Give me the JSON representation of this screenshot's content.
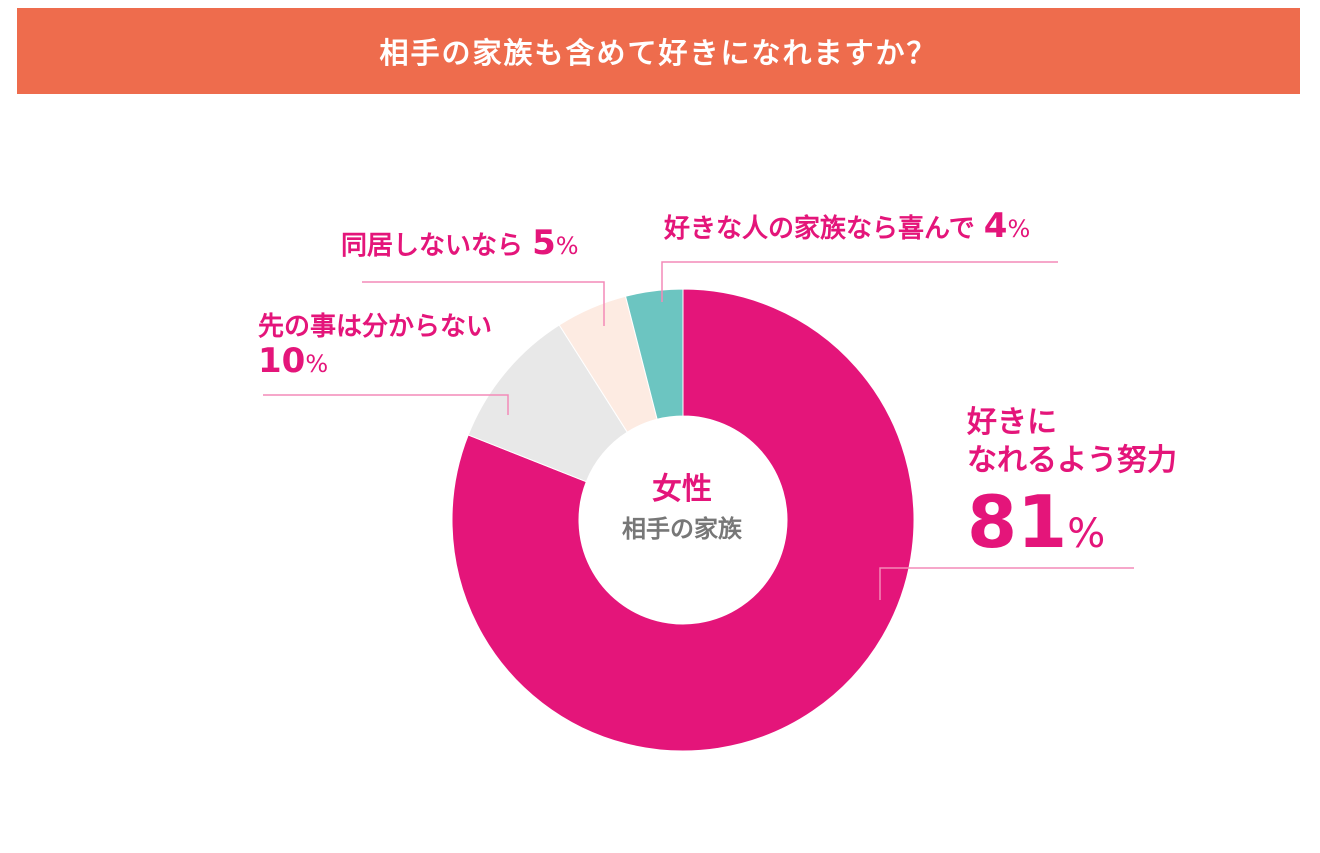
{
  "header": {
    "title": "相手の家族も含めて好きになれますか？",
    "color": "#ee6c4d"
  },
  "chart_data": {
    "type": "pie",
    "donut": true,
    "center_title": "女性",
    "center_subtitle": "相手の家族",
    "slices": [
      {
        "label": "好きになれるよう努力",
        "label_lines": [
          "好きに",
          "なれるよう努力"
        ],
        "value": 81,
        "value_text": "81",
        "color": "#e4157a"
      },
      {
        "label": "先の事は分からない",
        "label_lines": [
          "先の事は分からない"
        ],
        "value": 10,
        "value_text": "10",
        "color": "#e8e8e8"
      },
      {
        "label": "同居しないなら",
        "label_lines": [
          "同居しないなら"
        ],
        "value": 5,
        "value_text": "5",
        "color": "#fdebe2"
      },
      {
        "label": "好きな人の家族なら喜んで",
        "label_lines": [
          "好きな人の家族なら喜んで"
        ],
        "value": 4,
        "value_text": "4",
        "color": "#6cc5c1"
      }
    ],
    "percent_sign": "%",
    "leader_color": "#f38ab8"
  }
}
